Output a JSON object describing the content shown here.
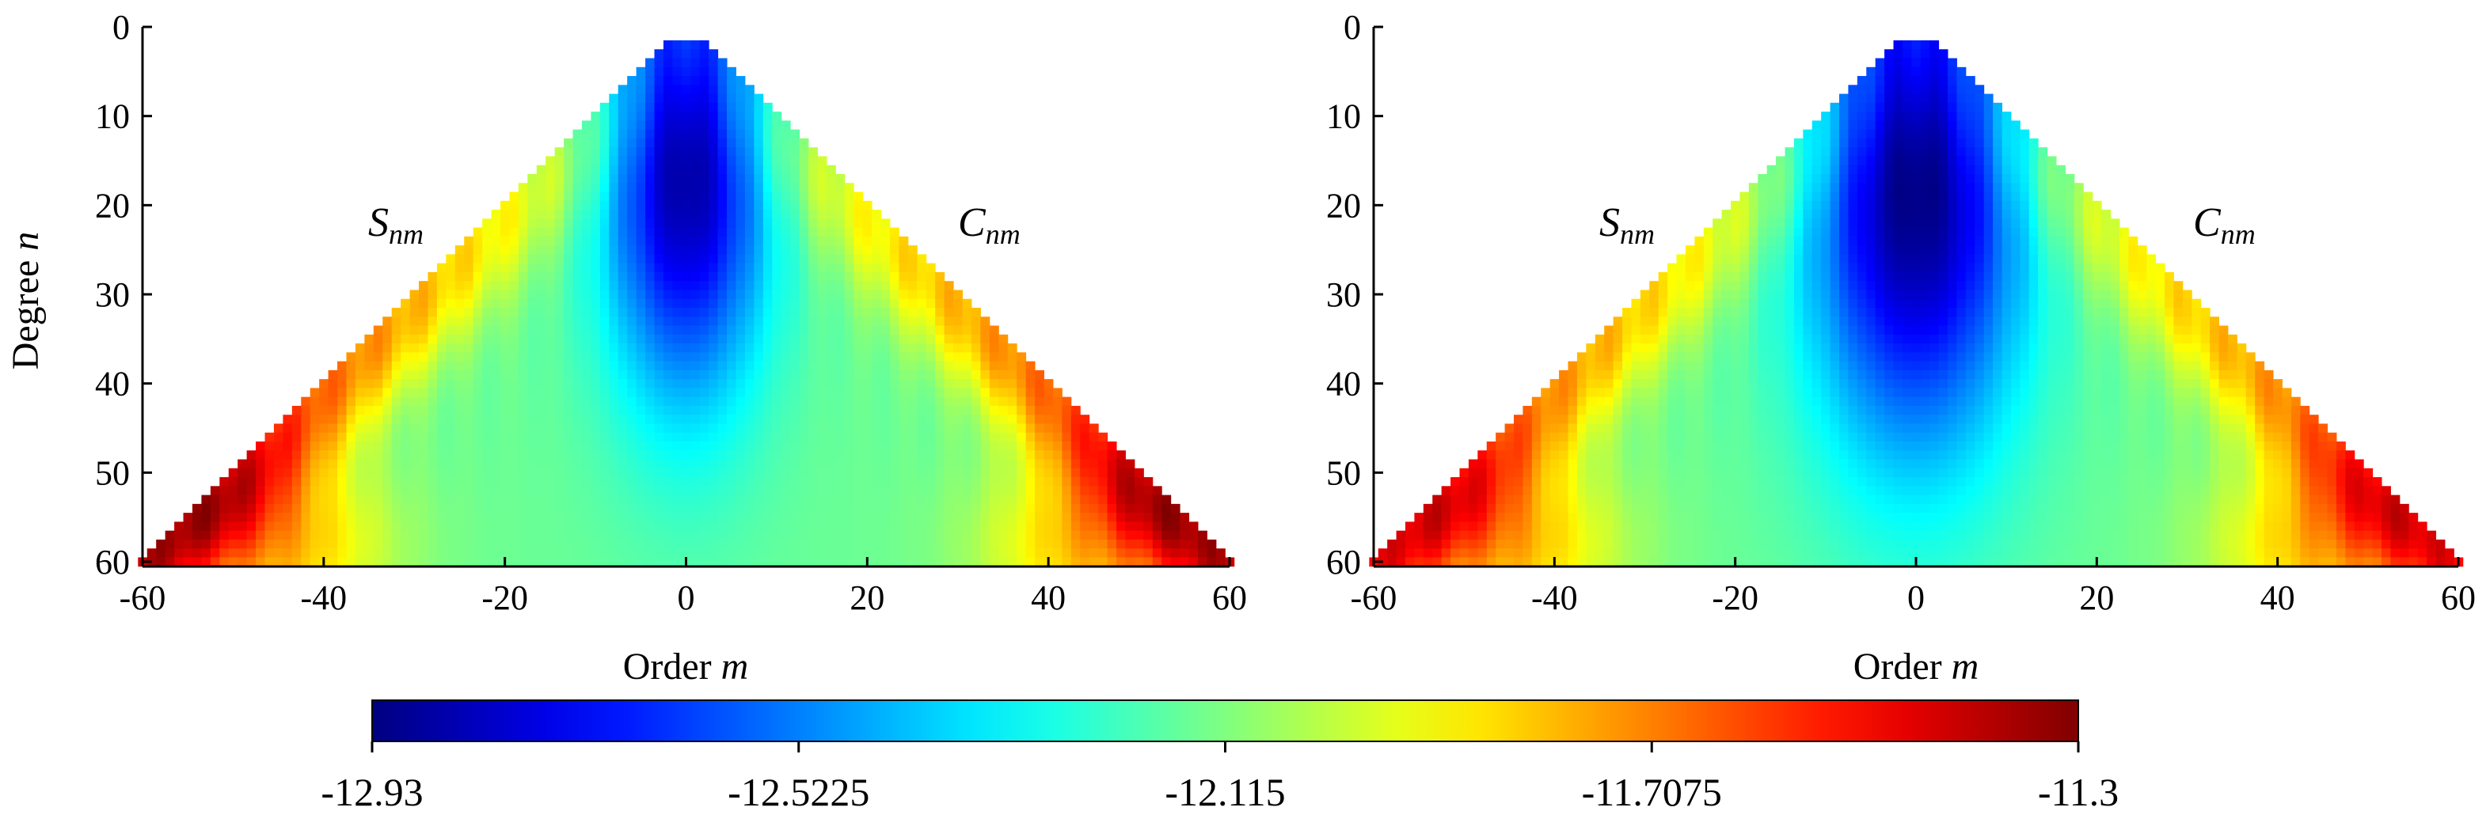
{
  "chart_data": [
    {
      "type": "heatmap",
      "title": "",
      "xlabel": "Order m",
      "xlabel_main": "Order ",
      "xlabel_var": "m",
      "ylabel": "Degree n",
      "ylabel_main": "Degree ",
      "ylabel_var": "n",
      "xlim": [
        -60,
        60
      ],
      "ylim": [
        0,
        60
      ],
      "y_inverted": true,
      "xticks": [
        -60,
        -40,
        -20,
        0,
        20,
        40,
        60
      ],
      "yticks": [
        0,
        10,
        20,
        30,
        40,
        50,
        60
      ],
      "region_labels": [
        {
          "main": "S",
          "sub": "nm",
          "x": -35,
          "y": 23
        },
        {
          "main": "C",
          "sub": "nm",
          "x": 35,
          "y": 23
        }
      ],
      "field": {
        "min": -12.93,
        "max": -11.3,
        "central_low": -12.88,
        "central_sigma_m": 9,
        "central_sigma_n": 26,
        "central_center_n": 16,
        "edge_high": -11.45,
        "edge_width": 9
      }
    },
    {
      "type": "heatmap",
      "title": "",
      "xlabel": "Order m",
      "xlabel_main": "Order ",
      "xlabel_var": "m",
      "ylabel": "",
      "xlim": [
        -60,
        60
      ],
      "ylim": [
        0,
        60
      ],
      "y_inverted": true,
      "xticks": [
        -60,
        -40,
        -20,
        0,
        20,
        40,
        60
      ],
      "yticks": [
        0,
        10,
        20,
        30,
        40,
        50,
        60
      ],
      "region_labels": [
        {
          "main": "S",
          "sub": "nm",
          "x": -35,
          "y": 23
        },
        {
          "main": "C",
          "sub": "nm",
          "x": 35,
          "y": 23
        }
      ],
      "field": {
        "min": -12.93,
        "max": -11.3,
        "central_low": -12.93,
        "central_sigma_m": 12,
        "central_sigma_n": 30,
        "central_center_n": 18,
        "edge_high": -11.55,
        "edge_width": 9
      }
    }
  ],
  "colorbar": {
    "min": -12.93,
    "max": -11.3,
    "tick_labels": [
      "-12.93",
      "-12.5225",
      "-12.115",
      "-11.7075",
      "-11.3"
    ],
    "colormap": "jet",
    "colors": [
      "#00007f",
      "#0000ff",
      "#007fff",
      "#00ffff",
      "#7fff7f",
      "#ffff00",
      "#ff7f00",
      "#ff0000",
      "#7f0000"
    ]
  }
}
